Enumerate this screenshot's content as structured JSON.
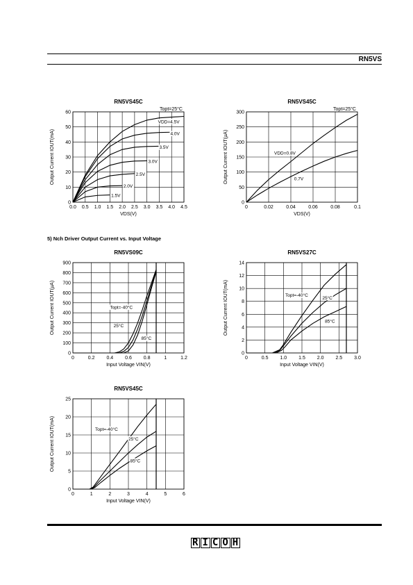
{
  "header": {
    "title": "RN5VS"
  },
  "section_heading": "5) Nch Driver Output Current vs. Input Voltage",
  "footer": {
    "logo": "RICOH"
  },
  "chart_data": [
    {
      "id": "c1",
      "type": "line",
      "title": "RN5VS45C",
      "topt_label": "Topt=25°C",
      "xlabel": "VDS(V)",
      "ylabel": "Output Current IOUT(mA)",
      "xlim": [
        0,
        4.5
      ],
      "ylim": [
        0,
        60
      ],
      "xticks": [
        0,
        0.5,
        1.0,
        1.5,
        2.0,
        2.5,
        3.0,
        3.5,
        4.0,
        4.5
      ],
      "xtick_labels": [
        "0.0",
        "0.5",
        "1.0",
        "1.5",
        "2.0",
        "2.5",
        "3.0",
        "3.5",
        "4.0",
        "4.5"
      ],
      "yticks": [
        0,
        10,
        20,
        30,
        40,
        50,
        60
      ],
      "grid": true,
      "series": [
        {
          "name": "VDD=4.5V",
          "points": [
            [
              0,
              0
            ],
            [
              0.5,
              18
            ],
            [
              1.0,
              31
            ],
            [
              1.5,
              40
            ],
            [
              2.0,
              47
            ],
            [
              2.5,
              51.5
            ],
            [
              3.0,
              54.5
            ],
            [
              3.5,
              56
            ],
            [
              4.0,
              56.5
            ],
            [
              4.5,
              57
            ]
          ]
        },
        {
          "name": "4.0V",
          "points": [
            [
              0,
              0
            ],
            [
              0.5,
              17
            ],
            [
              1.0,
              29
            ],
            [
              1.5,
              37
            ],
            [
              2.0,
              42
            ],
            [
              2.5,
              44.5
            ],
            [
              3.0,
              45.8
            ],
            [
              3.5,
              46.3
            ],
            [
              4.0,
              46.5
            ]
          ]
        },
        {
          "name": "3.5V",
          "points": [
            [
              0,
              0
            ],
            [
              0.5,
              15
            ],
            [
              1.0,
              25
            ],
            [
              1.5,
              31.5
            ],
            [
              2.0,
              35
            ],
            [
              2.5,
              36.5
            ],
            [
              3.0,
              37
            ],
            [
              3.5,
              37.2
            ]
          ]
        },
        {
          "name": "3.0V",
          "points": [
            [
              0,
              0
            ],
            [
              0.5,
              13
            ],
            [
              1.0,
              20.5
            ],
            [
              1.5,
              24.5
            ],
            [
              2.0,
              26.5
            ],
            [
              2.5,
              27.3
            ],
            [
              3.0,
              27.5
            ]
          ]
        },
        {
          "name": "2.5V",
          "points": [
            [
              0,
              0
            ],
            [
              0.5,
              10
            ],
            [
              1.0,
              15
            ],
            [
              1.5,
              17.5
            ],
            [
              2.0,
              18.5
            ],
            [
              2.5,
              19
            ]
          ]
        },
        {
          "name": "2.0V",
          "points": [
            [
              0,
              0
            ],
            [
              0.5,
              7
            ],
            [
              1.0,
              10
            ],
            [
              1.5,
              10.8
            ],
            [
              2.0,
              11
            ]
          ]
        },
        {
          "name": "1.5V",
          "points": [
            [
              0,
              0
            ],
            [
              0.5,
              3.5
            ],
            [
              1.0,
              4.5
            ],
            [
              1.5,
              4.8
            ]
          ]
        }
      ],
      "labels": [
        {
          "text": "VDD=4.5V",
          "x": 3.45,
          "y": 52.5
        },
        {
          "text": "4.0V",
          "x": 3.95,
          "y": 44.5
        },
        {
          "text": "3.5V",
          "x": 3.5,
          "y": 35.5
        },
        {
          "text": "3.0V",
          "x": 3.05,
          "y": 26
        },
        {
          "text": "2.5V",
          "x": 2.55,
          "y": 17.5
        },
        {
          "text": "2.0V",
          "x": 2.05,
          "y": 9.8
        },
        {
          "text": "1.5V",
          "x": 1.55,
          "y": 3.5
        }
      ]
    },
    {
      "id": "c2",
      "type": "line",
      "title": "RN5VS45C",
      "topt_label": "Topt=25°C",
      "xlabel": "VDS(V)",
      "ylabel": "Output Current IOUT(µA)",
      "xlim": [
        0,
        0.1
      ],
      "ylim": [
        0,
        300
      ],
      "xticks": [
        0,
        0.02,
        0.04,
        0.06,
        0.08,
        0.1
      ],
      "xtick_labels": [
        "0",
        "0.02",
        "0.04",
        "0.06",
        "0.08",
        "0.1"
      ],
      "yticks": [
        0,
        50,
        100,
        150,
        200,
        250,
        300
      ],
      "grid": true,
      "series": [
        {
          "name": "VDD=0.8V",
          "points": [
            [
              0,
              0
            ],
            [
              0.01,
              40
            ],
            [
              0.02,
              75
            ],
            [
              0.03,
              106
            ],
            [
              0.04,
              135
            ],
            [
              0.05,
              165
            ],
            [
              0.06,
              195
            ],
            [
              0.07,
              222
            ],
            [
              0.08,
              248
            ],
            [
              0.09,
              272
            ],
            [
              0.1,
              292
            ]
          ]
        },
        {
          "name": "0.7V",
          "points": [
            [
              0,
              0
            ],
            [
              0.01,
              24
            ],
            [
              0.02,
              46
            ],
            [
              0.03,
              66
            ],
            [
              0.04,
              85
            ],
            [
              0.05,
              103
            ],
            [
              0.06,
              120
            ],
            [
              0.07,
              136
            ],
            [
              0.08,
              150
            ],
            [
              0.09,
              162
            ],
            [
              0.1,
              172
            ]
          ]
        }
      ],
      "labels": [
        {
          "text": "VDD=0.8V",
          "x": 0.025,
          "y": 158
        },
        {
          "text": "0.7V",
          "x": 0.043,
          "y": 73
        }
      ]
    },
    {
      "id": "c3",
      "type": "line",
      "title": "RN5VS09C",
      "xlabel": "Input Voltage VIN(V)",
      "ylabel": "Output Current IOUT(µA)",
      "xlim": [
        0,
        1.2
      ],
      "ylim": [
        0,
        900
      ],
      "xticks": [
        0,
        0.2,
        0.4,
        0.6,
        0.8,
        1.0,
        1.2
      ],
      "xtick_labels": [
        "0",
        "0.2",
        "0.4",
        "0.6",
        "0.8",
        "1",
        "1.2"
      ],
      "yticks": [
        0,
        100,
        200,
        300,
        400,
        500,
        600,
        700,
        800,
        900
      ],
      "grid": true,
      "vline_x": 0.9,
      "series": [
        {
          "name": "Topt=-40°C",
          "points": [
            [
              0,
              0
            ],
            [
              0.45,
              0
            ],
            [
              0.5,
              10
            ],
            [
              0.55,
              40
            ],
            [
              0.6,
              100
            ],
            [
              0.65,
              190
            ],
            [
              0.7,
              300
            ],
            [
              0.75,
              430
            ],
            [
              0.8,
              570
            ],
            [
              0.85,
              700
            ],
            [
              0.9,
              830
            ]
          ]
        },
        {
          "name": "25°C",
          "points": [
            [
              0,
              0
            ],
            [
              0.5,
              0
            ],
            [
              0.55,
              15
            ],
            [
              0.6,
              55
            ],
            [
              0.65,
              130
            ],
            [
              0.7,
              240
            ],
            [
              0.75,
              370
            ],
            [
              0.8,
              520
            ],
            [
              0.85,
              670
            ],
            [
              0.9,
              820
            ]
          ]
        },
        {
          "name": "85°C",
          "points": [
            [
              0,
              0
            ],
            [
              0.55,
              0
            ],
            [
              0.6,
              20
            ],
            [
              0.65,
              80
            ],
            [
              0.7,
              180
            ],
            [
              0.75,
              320
            ],
            [
              0.8,
              480
            ],
            [
              0.85,
              650
            ],
            [
              0.9,
              810
            ]
          ]
        }
      ],
      "labels": [
        {
          "text": "Topt=-40°C",
          "x": 0.4,
          "y": 440
        },
        {
          "text": "25°C",
          "x": 0.44,
          "y": 255
        },
        {
          "text": "85°C",
          "x": 0.74,
          "y": 130
        }
      ]
    },
    {
      "id": "c4",
      "type": "line",
      "title": "RN5VS27C",
      "xlabel": "Input Voltage VIN(V)",
      "ylabel": "Output Current IOUT(mA)",
      "xlim": [
        0,
        3.0
      ],
      "ylim": [
        0,
        14
      ],
      "xticks": [
        0,
        0.5,
        1.0,
        1.5,
        2.0,
        2.5,
        3.0
      ],
      "xtick_labels": [
        "0",
        "0.5",
        "1.0",
        "1.5",
        "2.0",
        "2.5",
        "3.0"
      ],
      "yticks": [
        0,
        2,
        4,
        6,
        8,
        10,
        12,
        14
      ],
      "grid": true,
      "vline_x": 2.7,
      "series": [
        {
          "name": "Topt=-40°C",
          "points": [
            [
              0,
              0
            ],
            [
              0.7,
              0
            ],
            [
              0.9,
              0.5
            ],
            [
              1.0,
              1.3
            ],
            [
              1.2,
              3.2
            ],
            [
              1.5,
              5.8
            ],
            [
              1.8,
              8.2
            ],
            [
              2.1,
              10.5
            ],
            [
              2.4,
              12.2
            ],
            [
              2.7,
              13.7
            ]
          ]
        },
        {
          "name": "25°C",
          "points": [
            [
              0,
              0
            ],
            [
              0.75,
              0
            ],
            [
              0.9,
              0.4
            ],
            [
              1.0,
              1.1
            ],
            [
              1.2,
              2.6
            ],
            [
              1.5,
              4.6
            ],
            [
              1.8,
              6.3
            ],
            [
              2.1,
              7.8
            ],
            [
              2.4,
              9
            ],
            [
              2.7,
              10
            ]
          ]
        },
        {
          "name": "85°C",
          "points": [
            [
              0,
              0
            ],
            [
              0.8,
              0
            ],
            [
              0.95,
              0.4
            ],
            [
              1.05,
              1.0
            ],
            [
              1.2,
              2.0
            ],
            [
              1.5,
              3.4
            ],
            [
              1.8,
              4.6
            ],
            [
              2.1,
              5.6
            ],
            [
              2.4,
              6.4
            ],
            [
              2.7,
              7.2
            ]
          ]
        }
      ],
      "labels": [
        {
          "text": "Topt=-40°C",
          "x": 1.05,
          "y": 8.7
        },
        {
          "text": "25°C",
          "x": 2.05,
          "y": 8.3
        },
        {
          "text": "85°C",
          "x": 2.12,
          "y": 4.7
        }
      ]
    },
    {
      "id": "c5",
      "type": "line",
      "title": "RN5VS45C",
      "xlabel": "Input Voltage VIN(V)",
      "ylabel": "Output Current IOUT(mA)",
      "xlim": [
        0,
        6
      ],
      "ylim": [
        0,
        25
      ],
      "xticks": [
        0,
        1,
        2,
        3,
        4,
        5,
        6
      ],
      "xtick_labels": [
        "0",
        "1",
        "2",
        "3",
        "4",
        "5",
        "6"
      ],
      "yticks": [
        0,
        5,
        10,
        15,
        20,
        25
      ],
      "grid": true,
      "vline_x": 4.5,
      "series": [
        {
          "name": "Topt=-40°C",
          "points": [
            [
              0,
              0
            ],
            [
              0.9,
              0
            ],
            [
              1.1,
              0.6
            ],
            [
              1.3,
              2
            ],
            [
              1.8,
              5.5
            ],
            [
              2.5,
              10.3
            ],
            [
              3.0,
              13.8
            ],
            [
              3.5,
              17.3
            ],
            [
              4.0,
              20.5
            ],
            [
              4.5,
              23.5
            ]
          ]
        },
        {
          "name": "25°C",
          "points": [
            [
              0,
              0
            ],
            [
              0.95,
              0
            ],
            [
              1.15,
              0.6
            ],
            [
              1.4,
              2
            ],
            [
              2.0,
              5
            ],
            [
              2.5,
              7.5
            ],
            [
              3.0,
              10
            ],
            [
              3.5,
              12.3
            ],
            [
              4.0,
              14.4
            ],
            [
              4.5,
              16
            ]
          ]
        },
        {
          "name": "85°C",
          "points": [
            [
              0,
              0
            ],
            [
              1.0,
              0
            ],
            [
              1.2,
              0.5
            ],
            [
              1.5,
              1.8
            ],
            [
              2.0,
              3.8
            ],
            [
              2.5,
              5.7
            ],
            [
              3.0,
              7.4
            ],
            [
              3.5,
              9
            ],
            [
              4.0,
              10.6
            ],
            [
              4.5,
              12
            ]
          ]
        }
      ],
      "labels": [
        {
          "text": "Topt=-40°C",
          "x": 1.2,
          "y": 16.2
        },
        {
          "text": "25°C",
          "x": 3.0,
          "y": 13.5
        },
        {
          "text": "85°C",
          "x": 3.1,
          "y": 7.4
        }
      ]
    }
  ]
}
